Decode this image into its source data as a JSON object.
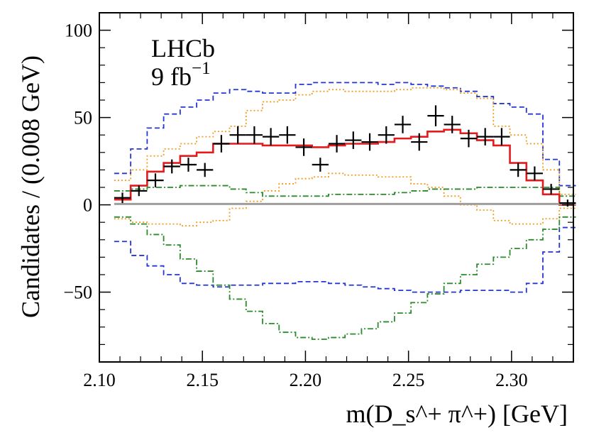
{
  "chart_data": {
    "type": "line",
    "title": "",
    "xlabel": "m(D_s^+ π^+) [GeV]",
    "ylabel": "Candidates / (0.008 GeV)",
    "xlim": [
      2.1,
      2.33
    ],
    "ylim": [
      -90,
      110
    ],
    "x_ticks": [
      2.1,
      2.15,
      2.2,
      2.25,
      2.3
    ],
    "x_tick_labels": [
      "2.10",
      "2.15",
      "2.20",
      "2.25",
      "2.30"
    ],
    "y_ticks": [
      -50,
      0,
      50,
      100
    ],
    "y_tick_labels": [
      "−50",
      "0",
      "50",
      "100"
    ],
    "annotations": [
      "LHCb",
      "9 fb",
      "−1"
    ],
    "bin_width": 0.008,
    "bin_edges": [
      2.1072,
      2.1152,
      2.1232,
      2.1312,
      2.1392,
      2.1472,
      2.1552,
      2.1632,
      2.1712,
      2.1792,
      2.1872,
      2.1952,
      2.2032,
      2.2112,
      2.2192,
      2.2272,
      2.2352,
      2.2432,
      2.2512,
      2.2592,
      2.2672,
      2.2752,
      2.2832,
      2.2912,
      2.2992,
      2.3072,
      2.3152,
      2.3232
    ],
    "data_points": {
      "name": "Data",
      "x": [
        2.1112,
        2.1192,
        2.1272,
        2.1352,
        2.1432,
        2.1512,
        2.1592,
        2.1672,
        2.1752,
        2.1832,
        2.1912,
        2.1992,
        2.2072,
        2.2152,
        2.2232,
        2.2312,
        2.2392,
        2.2472,
        2.2552,
        2.2632,
        2.2712,
        2.2792,
        2.2872,
        2.2952,
        2.3032,
        2.3112,
        2.3192,
        2.3272
      ],
      "y": [
        4,
        8,
        14,
        22,
        23,
        20,
        35,
        40,
        40,
        39,
        40,
        33,
        23,
        35,
        37,
        36,
        40,
        46,
        36,
        51,
        46,
        38,
        39,
        39,
        20,
        18,
        9,
        1
      ],
      "yerr": [
        3,
        3,
        4,
        4,
        4,
        4,
        5,
        5,
        5,
        5,
        5,
        5,
        4,
        5,
        5,
        5,
        5,
        5,
        5,
        6,
        5,
        5,
        5,
        5,
        4,
        4,
        3,
        2
      ]
    },
    "series": [
      {
        "name": "Fit (total)",
        "color": "#e41a1c",
        "style": "solid",
        "values": [
          3,
          11,
          19,
          24,
          28,
          30,
          35,
          35,
          35,
          34,
          34,
          34,
          33,
          34,
          35,
          35,
          36,
          38,
          39,
          42,
          43,
          41,
          37,
          34,
          24,
          14,
          6,
          0
        ]
      },
      {
        "name": "Fit (total)",
        "color": "#9e9e9e",
        "style": "solid",
        "values": [
          0.5,
          0.5,
          0.5,
          0.5,
          0.5,
          0.5,
          0.5,
          0.5,
          0.5,
          0.5,
          0.5,
          0.5,
          0.5,
          0.5,
          0.5,
          0.5,
          0.5,
          0.5,
          0.5,
          0.5,
          0.5,
          0.5,
          0.5,
          0.5,
          0.5,
          0.5,
          0.5,
          0.5
        ]
      },
      {
        "name": "Upper band (blue)",
        "color": "#2436d4",
        "style": "dashed",
        "values": [
          18,
          32,
          44,
          52,
          56,
          60,
          64,
          66,
          65,
          64,
          64,
          69,
          70,
          70,
          70,
          70,
          69,
          70,
          69,
          68,
          67,
          65,
          62,
          58,
          56,
          52,
          26,
          11
        ]
      },
      {
        "name": "Lower band (blue)",
        "color": "#2436d4",
        "style": "dashed",
        "values": [
          -21,
          -29,
          -35,
          -40,
          -45,
          -46,
          -47,
          -46,
          -46,
          -45,
          -45,
          -44,
          -44,
          -45,
          -46,
          -47,
          -48,
          -49,
          -50,
          -50,
          -50,
          -49,
          -49,
          -49,
          -50,
          -45,
          -27,
          -13
        ]
      },
      {
        "name": "Upper band (orange)",
        "color": "#f29b1d",
        "style": "dotted",
        "values": [
          14,
          20,
          28,
          32,
          35,
          39,
          42,
          45,
          54,
          59,
          60,
          63,
          65,
          66,
          65,
          65,
          65,
          66,
          67,
          67,
          66,
          64,
          61,
          45,
          40,
          35,
          20,
          6
        ]
      },
      {
        "name": "Lower band (orange)",
        "color": "#f29b1d",
        "style": "dotted",
        "values": [
          -8,
          -10,
          -11,
          -11,
          -12,
          -10,
          -9,
          -2,
          2,
          8,
          12,
          15,
          16,
          18,
          17,
          17,
          16,
          16,
          12,
          10,
          5,
          0,
          -3,
          -9,
          -11,
          -11,
          -8,
          -2
        ]
      },
      {
        "name": "Upper band (green)",
        "color": "#2a8c2a",
        "style": "dashdot",
        "values": [
          8,
          9,
          10,
          10,
          11,
          11,
          11,
          9,
          7,
          5,
          5,
          5,
          5,
          6,
          6,
          6,
          6,
          7,
          8,
          9,
          9,
          9,
          10,
          10,
          10,
          10,
          10,
          5
        ]
      },
      {
        "name": "Lower band (green)",
        "color": "#2a8c2a",
        "style": "dashdot",
        "values": [
          -7,
          -11,
          -17,
          -23,
          -31,
          -38,
          -46,
          -54,
          -61,
          -68,
          -73,
          -76,
          -77,
          -76,
          -74,
          -71,
          -67,
          -62,
          -56,
          -51,
          -45,
          -40,
          -34,
          -30,
          -25,
          -20,
          -14,
          -7
        ]
      }
    ]
  }
}
